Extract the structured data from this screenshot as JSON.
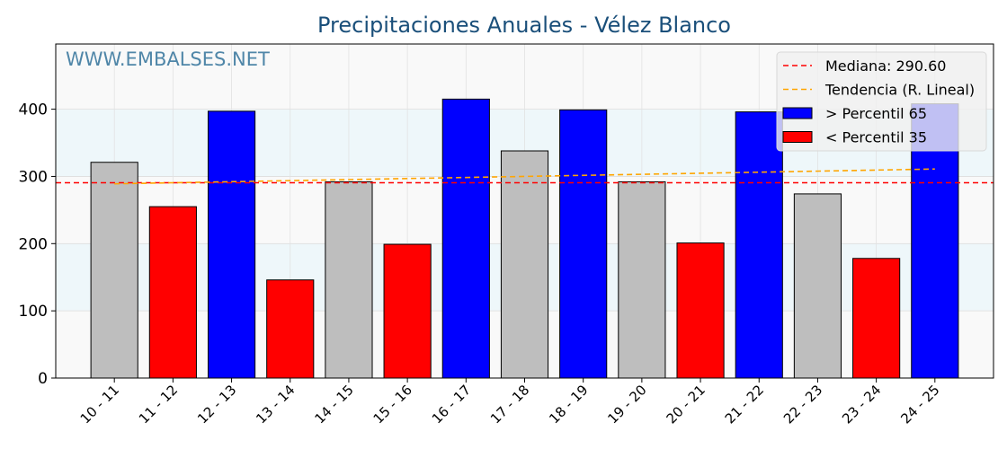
{
  "chart_data": {
    "type": "bar",
    "title": "Precipitaciones Anuales - Vélez Blanco",
    "watermark": "WWW.EMBALSES.NET",
    "xlabel": "",
    "ylabel": "",
    "ylim": [
      0,
      497
    ],
    "yticks": [
      0,
      100,
      200,
      300,
      400
    ],
    "grid": true,
    "legend_position": "top-right",
    "categories": [
      "10 - 11",
      "11 - 12",
      "12 - 13",
      "13 - 14",
      "14 - 15",
      "15 - 16",
      "16 - 17",
      "17 - 18",
      "18 - 19",
      "19 - 20",
      "20 - 21",
      "21 - 22",
      "22 - 23",
      "23 - 24",
      "24 - 25"
    ],
    "values": [
      321,
      255,
      397,
      146,
      292,
      199,
      415,
      338,
      399,
      292,
      201,
      396,
      274,
      178,
      408
    ],
    "bar_classes": [
      "mid",
      "low",
      "high",
      "low",
      "mid",
      "low",
      "high",
      "mid",
      "high",
      "mid",
      "low",
      "high",
      "mid",
      "low",
      "high"
    ],
    "median": 290.6,
    "trend": {
      "start": 289,
      "end": 311
    },
    "legend": [
      {
        "label": "Mediana: 290.60",
        "kind": "line",
        "color": "#ff0000"
      },
      {
        "label": "Tendencia (R. Lineal)",
        "kind": "line",
        "color": "#ffa500"
      },
      {
        "label": " > Percentil 65",
        "kind": "patch",
        "color": "#0000ff"
      },
      {
        "label": " < Percentil 35",
        "kind": "patch",
        "color": "#ff0000"
      }
    ],
    "colors": {
      "high": "#0000ff",
      "low": "#ff0000",
      "mid": "#bebebe",
      "median": "#ff0000",
      "trend": "#ffa500",
      "title": "#1a4f7a",
      "watermark": "#4f86a8"
    }
  }
}
